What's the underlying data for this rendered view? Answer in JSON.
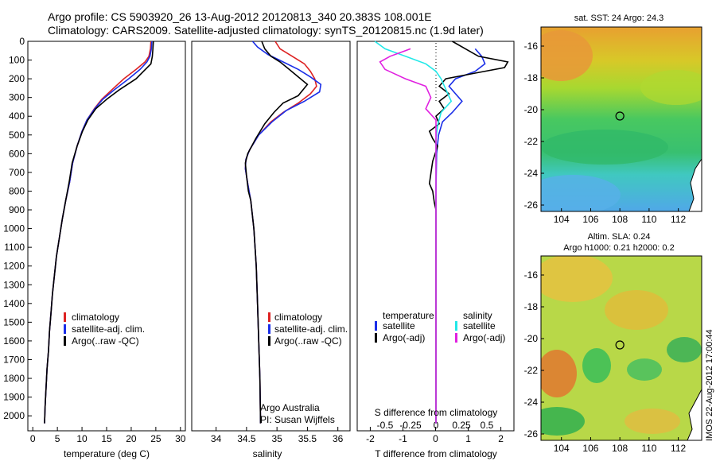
{
  "header": {
    "line1": "Argo profile: CS 5903920_26 13-Aug-2012 20120813_340 20.383S 108.001E",
    "line2": "Climatology: CARS2009. Satellite-adjusted climatology: synTS_20120815.nc (1.9d later)"
  },
  "side_stamp": "IMOS 22-Aug-2012 17:00:44",
  "colors": {
    "climatology": "#dd2222",
    "satellite": "#1a2ee8",
    "argo": "#000000",
    "sat_salinity": "#22e8e8",
    "argo_salinity": "#e020e0"
  },
  "chart_data": [
    {
      "type": "line",
      "panel": "temperature",
      "xlabel": "temperature (deg C)",
      "xlim": [
        -1,
        31
      ],
      "xticks": [
        0,
        5,
        10,
        15,
        20,
        25,
        30
      ],
      "ylim": [
        2080,
        0
      ],
      "yticks": [
        0,
        100,
        200,
        300,
        400,
        500,
        600,
        700,
        800,
        900,
        1000,
        1100,
        1200,
        1300,
        1400,
        1500,
        1600,
        1700,
        1800,
        1900,
        2000
      ],
      "legend": [
        "climatology",
        "satellite-adj. clim.",
        "Argo(..raw -QC)"
      ],
      "series": [
        {
          "name": "climatology",
          "color": "#dd2222",
          "points": [
            [
              24.0,
              0
            ],
            [
              23.9,
              40
            ],
            [
              23.6,
              80
            ],
            [
              22.8,
              110
            ],
            [
              21.0,
              150
            ],
            [
              18.5,
              200
            ],
            [
              16.0,
              260
            ],
            [
              14.0,
              310
            ],
            [
              12.5,
              360
            ],
            [
              11.0,
              420
            ],
            [
              10.0,
              480
            ],
            [
              9.0,
              560
            ],
            [
              8.1,
              650
            ],
            [
              7.5,
              750
            ],
            [
              6.7,
              850
            ],
            [
              6.0,
              950
            ],
            [
              5.4,
              1050
            ],
            [
              4.8,
              1150
            ],
            [
              4.4,
              1250
            ],
            [
              4.0,
              1350
            ],
            [
              3.7,
              1450
            ],
            [
              3.4,
              1550
            ],
            [
              3.2,
              1650
            ],
            [
              2.9,
              1750
            ],
            [
              2.7,
              1850
            ],
            [
              2.5,
              1950
            ],
            [
              2.4,
              2040
            ]
          ]
        },
        {
          "name": "satellite-adj. clim.",
          "color": "#1a2ee8",
          "points": [
            [
              24.2,
              0
            ],
            [
              24.1,
              40
            ],
            [
              23.8,
              80
            ],
            [
              23.2,
              110
            ],
            [
              21.8,
              150
            ],
            [
              19.5,
              200
            ],
            [
              16.5,
              260
            ],
            [
              14.2,
              310
            ],
            [
              12.6,
              360
            ],
            [
              11.0,
              420
            ],
            [
              10.0,
              480
            ],
            [
              9.0,
              560
            ],
            [
              8.1,
              650
            ],
            [
              7.5,
              750
            ],
            [
              6.7,
              850
            ],
            [
              6.0,
              950
            ],
            [
              5.4,
              1050
            ],
            [
              4.8,
              1150
            ],
            [
              4.4,
              1250
            ],
            [
              4.0,
              1350
            ],
            [
              3.7,
              1450
            ],
            [
              3.4,
              1550
            ],
            [
              3.2,
              1650
            ],
            [
              2.9,
              1750
            ],
            [
              2.7,
              1850
            ],
            [
              2.5,
              1950
            ],
            [
              2.4,
              2040
            ]
          ]
        },
        {
          "name": "Argo(..raw -QC)",
          "color": "#000000",
          "points": [
            [
              24.5,
              0
            ],
            [
              24.4,
              40
            ],
            [
              24.3,
              80
            ],
            [
              24.0,
              120
            ],
            [
              22.5,
              160
            ],
            [
              21.0,
              200
            ],
            [
              17.5,
              260
            ],
            [
              15.0,
              310
            ],
            [
              12.8,
              360
            ],
            [
              11.2,
              420
            ],
            [
              10.1,
              480
            ],
            [
              9.0,
              560
            ],
            [
              8.0,
              650
            ],
            [
              7.4,
              750
            ],
            [
              6.7,
              850
            ],
            [
              6.0,
              950
            ],
            [
              5.4,
              1050
            ],
            [
              4.8,
              1150
            ],
            [
              4.4,
              1250
            ],
            [
              4.0,
              1350
            ],
            [
              3.7,
              1450
            ],
            [
              3.4,
              1550
            ],
            [
              3.2,
              1650
            ],
            [
              2.9,
              1750
            ],
            [
              2.7,
              1850
            ],
            [
              2.5,
              1950
            ],
            [
              2.4,
              2040
            ]
          ]
        }
      ]
    },
    {
      "type": "line",
      "panel": "salinity",
      "xlabel": "salinity",
      "xlim": [
        33.6,
        36.2
      ],
      "xticks": [
        34,
        34.5,
        35,
        35.5,
        36
      ],
      "xticklabels": [
        "34",
        "34.5",
        "35",
        "35.5",
        "36"
      ],
      "ylim": [
        2080,
        0
      ],
      "legend": [
        "climatology",
        "satellite-adj. clim.",
        "Argo(..raw -QC)"
      ],
      "annotation": [
        "Argo Australia",
        "PI: Susan Wijffels"
      ],
      "series": [
        {
          "name": "climatology",
          "color": "#dd2222",
          "points": [
            [
              34.97,
              0
            ],
            [
              35.05,
              40
            ],
            [
              35.25,
              80
            ],
            [
              35.45,
              120
            ],
            [
              35.55,
              160
            ],
            [
              35.62,
              200
            ],
            [
              35.65,
              240
            ],
            [
              35.55,
              280
            ],
            [
              35.35,
              330
            ],
            [
              35.1,
              380
            ],
            [
              34.9,
              430
            ],
            [
              34.7,
              500
            ],
            [
              34.55,
              580
            ],
            [
              34.49,
              630
            ],
            [
              34.48,
              680
            ],
            [
              34.52,
              760
            ],
            [
              34.57,
              850
            ],
            [
              34.62,
              1000
            ],
            [
              34.66,
              1200
            ],
            [
              34.68,
              1400
            ],
            [
              34.7,
              1600
            ],
            [
              34.72,
              1800
            ],
            [
              34.73,
              2040
            ]
          ]
        },
        {
          "name": "satellite-adj. clim.",
          "color": "#1a2ee8",
          "points": [
            [
              34.6,
              0
            ],
            [
              34.68,
              30
            ],
            [
              34.85,
              70
            ],
            [
              35.1,
              110
            ],
            [
              35.35,
              150
            ],
            [
              35.55,
              190
            ],
            [
              35.72,
              230
            ],
            [
              35.7,
              270
            ],
            [
              35.45,
              320
            ],
            [
              35.15,
              370
            ],
            [
              34.92,
              430
            ],
            [
              34.7,
              500
            ],
            [
              34.55,
              580
            ],
            [
              34.49,
              630
            ],
            [
              34.48,
              680
            ],
            [
              34.52,
              760
            ],
            [
              34.57,
              850
            ],
            [
              34.62,
              1000
            ],
            [
              34.66,
              1200
            ],
            [
              34.68,
              1400
            ],
            [
              34.7,
              1600
            ],
            [
              34.72,
              1800
            ],
            [
              34.73,
              2040
            ]
          ]
        },
        {
          "name": "Argo(..raw -QC)",
          "color": "#000000",
          "points": [
            [
              34.75,
              0
            ],
            [
              34.8,
              40
            ],
            [
              34.9,
              80
            ],
            [
              35.05,
              110
            ],
            [
              35.2,
              150
            ],
            [
              35.35,
              190
            ],
            [
              35.5,
              230
            ],
            [
              35.45,
              250
            ],
            [
              35.35,
              290
            ],
            [
              35.1,
              330
            ],
            [
              34.95,
              380
            ],
            [
              34.8,
              440
            ],
            [
              34.65,
              520
            ],
            [
              34.52,
              600
            ],
            [
              34.48,
              650
            ],
            [
              34.5,
              720
            ],
            [
              34.53,
              800
            ],
            [
              34.57,
              850
            ],
            [
              34.62,
              1000
            ],
            [
              34.66,
              1200
            ],
            [
              34.68,
              1400
            ],
            [
              34.7,
              1600
            ],
            [
              34.72,
              1800
            ],
            [
              34.73,
              2040
            ]
          ]
        }
      ]
    },
    {
      "type": "line",
      "panel": "difference",
      "xlabel": "T difference from climatology",
      "xlabel_top": "S difference from climatology",
      "t_xlim": [
        -2.4,
        2.4
      ],
      "t_xticks": [
        -2,
        -1,
        0,
        1,
        2
      ],
      "s_xticks": [
        -0.5,
        -0.25,
        0,
        0.25,
        0.5
      ],
      "s_xticklabels": [
        "-0.5",
        "-0.25",
        "0",
        "0.25",
        "0.5"
      ],
      "legend_left_title": "temperature",
      "legend_right_title": "salinity",
      "legend_left": [
        "satellite",
        "Argo(-adj)"
      ],
      "legend_right": [
        "satellite",
        "Argo(-adj)"
      ],
      "series": [
        {
          "name": "satellite",
          "group": "temperature",
          "color": "#1a2ee8",
          "points": [
            [
              1.2,
              40
            ],
            [
              1.4,
              80
            ],
            [
              1.5,
              120
            ],
            [
              1.2,
              160
            ],
            [
              0.6,
              200
            ],
            [
              0.4,
              240
            ],
            [
              0.6,
              280
            ],
            [
              0.8,
              320
            ],
            [
              0.5,
              380
            ],
            [
              0.2,
              430
            ],
            [
              0.08,
              500
            ],
            [
              0.02,
              600
            ],
            [
              0,
              800
            ],
            [
              0,
              2040
            ]
          ]
        },
        {
          "name": "Argo(-adj)",
          "group": "temperature",
          "color": "#000000",
          "points": [
            [
              0.5,
              0
            ],
            [
              1.3,
              80
            ],
            [
              2.2,
              110
            ],
            [
              2.1,
              140
            ],
            [
              1.2,
              170
            ],
            [
              0.3,
              200
            ],
            [
              0.1,
              240
            ],
            [
              0.4,
              280
            ],
            [
              0.1,
              320
            ],
            [
              0.25,
              360
            ],
            [
              0,
              400
            ],
            [
              0.1,
              440
            ],
            [
              -0.2,
              480
            ],
            [
              -0.1,
              520
            ],
            [
              0.05,
              560
            ],
            [
              -0.1,
              640
            ],
            [
              -0.15,
              700
            ],
            [
              -0.2,
              760
            ],
            [
              -0.1,
              800
            ],
            [
              -0.05,
              860
            ],
            [
              0,
              900
            ],
            [
              0,
              2040
            ]
          ]
        },
        {
          "name": "satellite",
          "group": "salinity",
          "color": "#22e8e8",
          "points": [
            [
              -0.6,
              0
            ],
            [
              -0.5,
              40
            ],
            [
              -0.3,
              80
            ],
            [
              -0.1,
              120
            ],
            [
              0,
              160
            ],
            [
              0.05,
              200
            ],
            [
              0.1,
              260
            ],
            [
              0.15,
              320
            ],
            [
              0.05,
              380
            ],
            [
              0.02,
              440
            ],
            [
              0,
              520
            ],
            [
              0,
              2040
            ]
          ]
        },
        {
          "name": "Argo(-adj)",
          "group": "salinity",
          "color": "#e020e0",
          "points": [
            [
              -0.25,
              40
            ],
            [
              -0.45,
              80
            ],
            [
              -0.55,
              110
            ],
            [
              -0.5,
              150
            ],
            [
              -0.3,
              200
            ],
            [
              -0.1,
              240
            ],
            [
              -0.05,
              300
            ],
            [
              -0.1,
              360
            ],
            [
              0,
              420
            ],
            [
              0,
              2040
            ]
          ]
        }
      ]
    },
    {
      "type": "heatmap",
      "panel": "sst-map",
      "title": "sat. SST: 24 Argo: 24.3",
      "xlim": [
        102.6,
        113.6
      ],
      "ylim": [
        -26.4,
        -14.8
      ],
      "xticks": [
        104,
        106,
        108,
        110,
        112
      ],
      "yticks": [
        -16,
        -18,
        -20,
        -22,
        -24,
        -26
      ],
      "marker": [
        108.0,
        -20.4
      ]
    },
    {
      "type": "heatmap",
      "panel": "sla-map",
      "title_lines": [
        "Altim. SLA: 0.24",
        "Argo h1000: 0.21 h2000: 0.2"
      ],
      "xlim": [
        102.6,
        113.6
      ],
      "ylim": [
        -26.4,
        -14.8
      ],
      "xticks": [
        104,
        106,
        108,
        110,
        112
      ],
      "yticks": [
        -16,
        -18,
        -20,
        -22,
        -24,
        -26
      ],
      "marker": [
        108.0,
        -20.4
      ]
    }
  ]
}
